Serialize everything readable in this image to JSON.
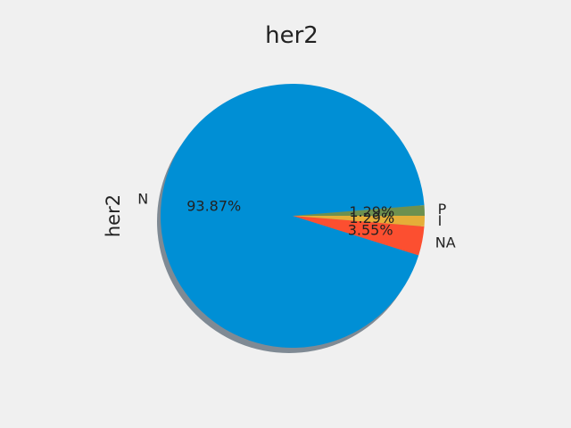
{
  "chart_data": {
    "type": "pie",
    "title": "her2",
    "ylabel": "her2",
    "shadow": true,
    "start_angle_deg": 0,
    "direction": "counterclockwise",
    "slices": [
      {
        "label": "P",
        "value": 1.29,
        "pct_label": "1.29%",
        "color": "#6d904f"
      },
      {
        "label": "N",
        "value": 93.87,
        "pct_label": "93.87%",
        "color": "#008fd5"
      },
      {
        "label": "NA",
        "value": 3.55,
        "pct_label": "3.55%",
        "color": "#fc4f30"
      },
      {
        "label": "I",
        "value": 1.29,
        "pct_label": "1.29%",
        "color": "#e5ae38"
      }
    ],
    "background_color": "#f0f0f0",
    "shadow_color": "#7f8a94"
  }
}
